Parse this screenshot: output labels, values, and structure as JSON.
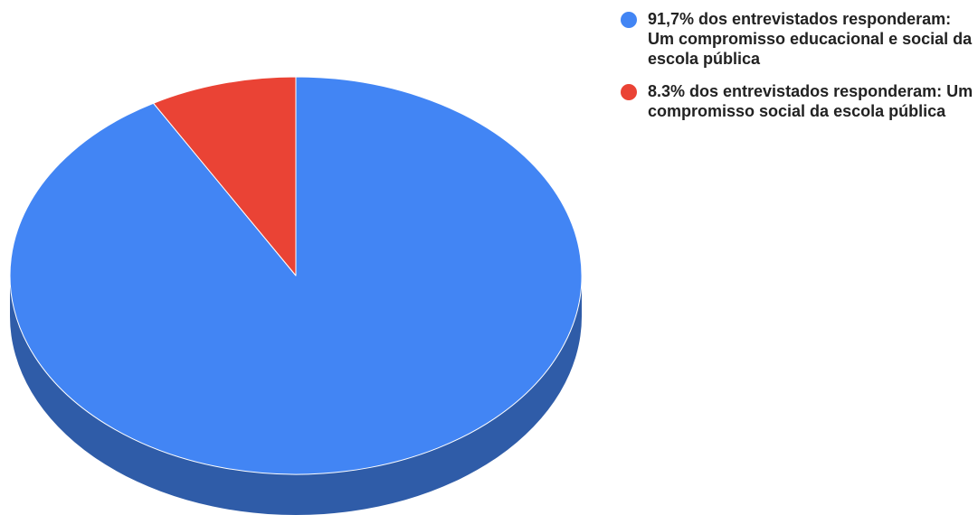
{
  "chart_data": {
    "type": "pie",
    "style": "3d",
    "title": "",
    "legend_position": "right",
    "slices": [
      {
        "label": "91,7% dos entrevistados responderam: Um compromisso educacional e social da escola pública",
        "value": 91.7,
        "color": "#4285f4",
        "side_color": "#2f5ca8"
      },
      {
        "label": "8.3% dos entrevistados responderam: Um compromisso social da escola pública",
        "value": 8.3,
        "color": "#ea4335",
        "side_color": "#a52f25"
      }
    ]
  }
}
